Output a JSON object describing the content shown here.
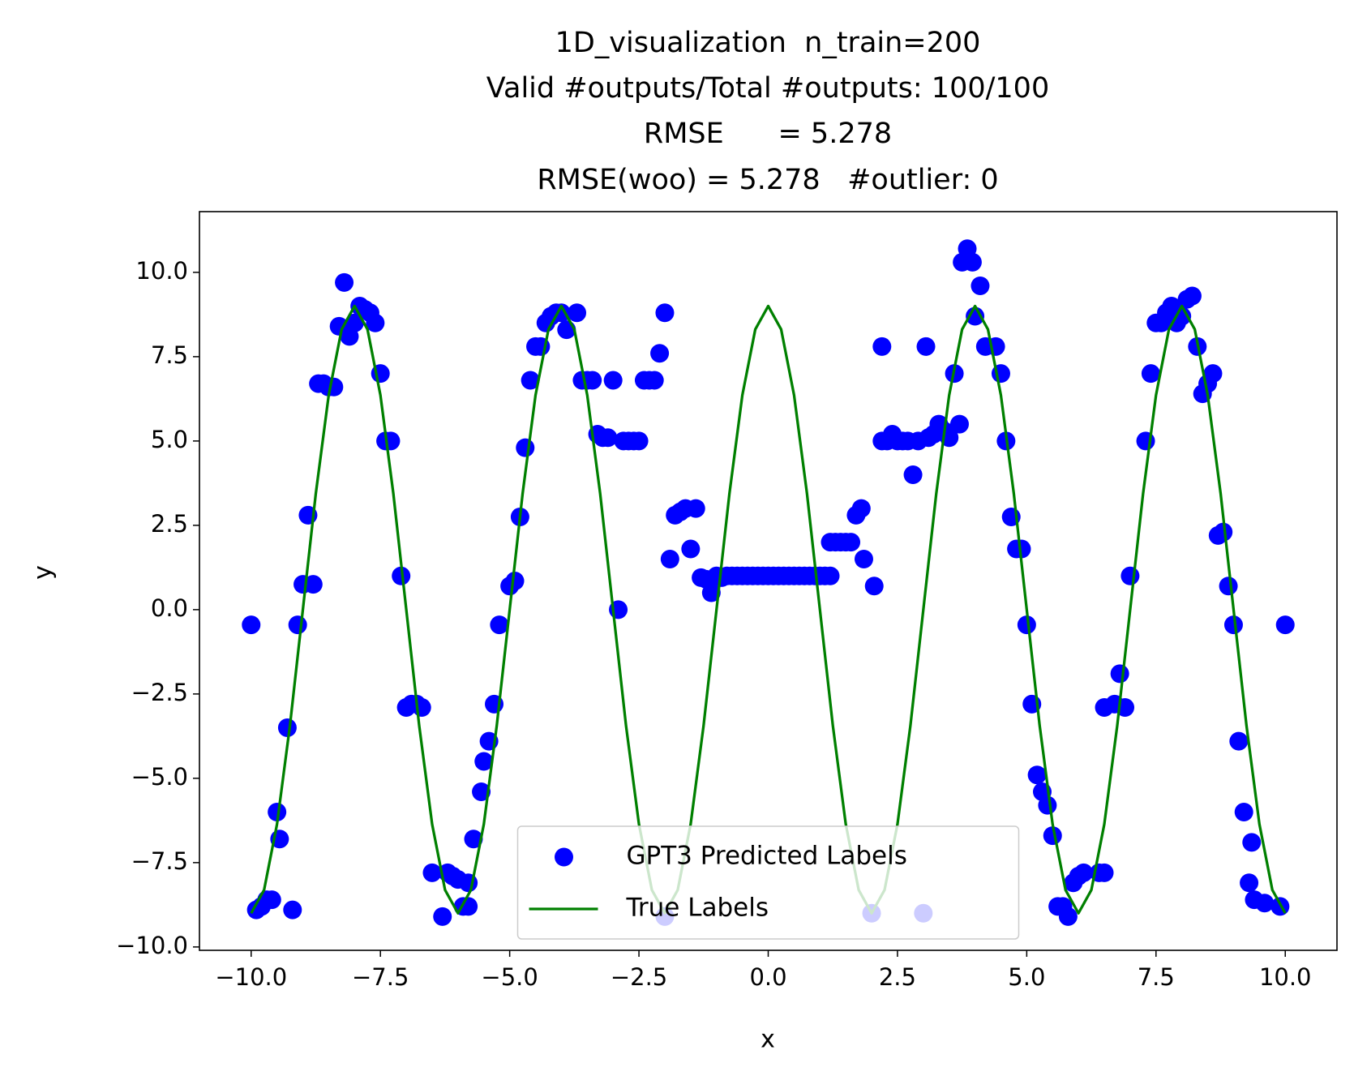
{
  "chart_data": {
    "type": "scatter",
    "title": [
      "1D_visualization  n_train=200",
      "Valid #outputs/Total #outputs: 100/100",
      "RMSE      = 5.278",
      "RMSE(woo) = 5.278   #outlier: 0"
    ],
    "x_label": "x",
    "y_label": "y",
    "xlim": [
      -11,
      11
    ],
    "ylim": [
      -10.1,
      11.8
    ],
    "xticks": [
      {
        "value": -10,
        "label": "−10.0"
      },
      {
        "value": -7.5,
        "label": "−7.5"
      },
      {
        "value": -5,
        "label": "−5.0"
      },
      {
        "value": -2.5,
        "label": "−2.5"
      },
      {
        "value": 0,
        "label": "0.0"
      },
      {
        "value": 2.5,
        "label": "2.5"
      },
      {
        "value": 5,
        "label": "5.0"
      },
      {
        "value": 7.5,
        "label": "7.5"
      },
      {
        "value": 10,
        "label": "10.0"
      }
    ],
    "yticks": [
      {
        "value": -10,
        "label": "−10.0"
      },
      {
        "value": -7.5,
        "label": "−7.5"
      },
      {
        "value": -5,
        "label": "−5.0"
      },
      {
        "value": -2.5,
        "label": "−2.5"
      },
      {
        "value": 0,
        "label": "0.0"
      },
      {
        "value": 2.5,
        "label": "2.5"
      },
      {
        "value": 5,
        "label": "5.0"
      },
      {
        "value": 7.5,
        "label": "7.5"
      },
      {
        "value": 10,
        "label": "10.0"
      }
    ],
    "grid": false,
    "legend": "lower center",
    "series": [
      {
        "name": "GPT3 Predicted Labels",
        "type": "scatter",
        "color": "#0000ff",
        "x": [
          -10,
          -9.9,
          -9.8,
          -9.7,
          -9.6,
          -9.5,
          -9.45,
          -9.3,
          -9.2,
          -9.1,
          -9.0,
          -8.9,
          -8.8,
          -8.7,
          -8.6,
          -8.5,
          -8.4,
          -8.3,
          -8.2,
          -8.1,
          -8.0,
          -7.9,
          -7.8,
          -7.7,
          -7.6,
          -7.5,
          -7.4,
          -7.3,
          -7.1,
          -7.0,
          -6.9,
          -6.8,
          -6.7,
          -6.5,
          -6.3,
          -6.2,
          -6.1,
          -6.0,
          -5.9,
          -5.8,
          -5.8,
          -5.7,
          -5.55,
          -5.5,
          -5.4,
          -5.3,
          -5.2,
          -5.0,
          -4.9,
          -4.8,
          -4.7,
          -4.6,
          -4.5,
          -4.4,
          -4.3,
          -4.2,
          -4.1,
          -4.0,
          -3.9,
          -3.7,
          -3.6,
          -3.5,
          -3.4,
          -3.3,
          -3.2,
          -3.1,
          -3.0,
          -2.9,
          -2.8,
          -2.7,
          -2.6,
          -2.5,
          -2.4,
          -2.3,
          -2.2,
          -2.1,
          -2.0,
          -2.0,
          -1.9,
          -1.8,
          -1.7,
          -1.6,
          -1.5,
          -1.4,
          -1.3,
          -1.2,
          -1.1,
          -1.0,
          -0.9,
          -0.8,
          -0.7,
          -0.6,
          -0.5,
          -0.4,
          -0.3,
          -0.2,
          -0.1,
          0,
          0.1,
          0.2,
          0.3,
          0.4,
          0.5,
          0.6,
          0.7,
          0.8,
          0.9,
          1.0,
          1.1,
          1.2,
          1.2,
          1.3,
          1.4,
          1.5,
          1.6,
          1.7,
          1.8,
          1.85,
          2.0,
          2.05,
          2.2,
          2.2,
          2.3,
          2.4,
          2.5,
          2.6,
          2.7,
          2.8,
          2.9,
          3.0,
          3.05,
          3.1,
          3.2,
          3.3,
          3.4,
          3.5,
          3.6,
          3.7,
          3.75,
          3.85,
          3.95,
          4.0,
          4.1,
          4.2,
          4.4,
          4.5,
          4.6,
          4.7,
          4.8,
          4.9,
          5.0,
          5.1,
          5.2,
          5.3,
          5.4,
          5.5,
          5.6,
          5.7,
          5.8,
          5.9,
          6.0,
          6.1,
          6.4,
          6.5,
          6.5,
          6.7,
          6.8,
          6.9,
          7.0,
          7.3,
          7.4,
          7.5,
          7.6,
          7.7,
          7.8,
          7.9,
          8.0,
          8.1,
          8.2,
          8.3,
          8.4,
          8.5,
          8.6,
          8.7,
          8.8,
          8.9,
          9.0,
          9.1,
          9.2,
          9.3,
          9.35,
          9.4,
          9.6,
          9.9,
          10.0
        ],
        "values": [
          -0.45,
          -8.9,
          -8.8,
          -8.6,
          -8.6,
          -6.0,
          -6.8,
          -3.5,
          -8.9,
          -0.45,
          0.75,
          2.8,
          0.75,
          6.7,
          6.7,
          6.6,
          6.6,
          8.4,
          9.7,
          8.1,
          8.5,
          9.0,
          8.9,
          8.8,
          8.5,
          7.0,
          5.0,
          5.0,
          1.0,
          -2.9,
          -2.8,
          -2.8,
          -2.9,
          -7.8,
          -9.1,
          -7.8,
          -7.9,
          -8.0,
          -8.8,
          -8.8,
          -8.1,
          -6.8,
          -5.4,
          -4.5,
          -3.9,
          -2.8,
          -0.45,
          0.7,
          0.85,
          2.75,
          4.8,
          6.8,
          7.8,
          7.8,
          8.5,
          8.7,
          8.8,
          8.8,
          8.3,
          8.8,
          6.8,
          6.8,
          6.8,
          5.2,
          5.1,
          5.1,
          6.8,
          0.0,
          5.0,
          5.0,
          5.0,
          5.0,
          6.8,
          6.8,
          6.8,
          7.6,
          8.8,
          -9.1,
          1.5,
          2.8,
          2.9,
          3.0,
          1.8,
          3.0,
          0.95,
          0.9,
          0.5,
          1.0,
          0.95,
          1.0,
          1.0,
          1.0,
          1.0,
          1.0,
          1.0,
          1.0,
          1.0,
          1.0,
          1.0,
          1.0,
          1.0,
          1.0,
          1.0,
          1.0,
          1.0,
          1.0,
          1.0,
          1.0,
          1.0,
          1.0,
          2.0,
          2.0,
          2.0,
          2.0,
          2.0,
          2.8,
          3.0,
          1.5,
          -9.0,
          0.7,
          7.8,
          5.0,
          5.0,
          5.2,
          5.0,
          5.0,
          5.0,
          4.0,
          5.0,
          -9.0,
          7.8,
          5.1,
          5.2,
          5.5,
          5.3,
          5.1,
          7.0,
          5.5,
          10.3,
          10.7,
          10.3,
          8.7,
          9.6,
          7.8,
          7.8,
          7.0,
          5.0,
          2.75,
          1.8,
          1.8,
          -0.45,
          -2.8,
          -4.9,
          -5.4,
          -5.8,
          -6.7,
          -8.8,
          -8.8,
          -9.1,
          -8.1,
          -7.9,
          -7.8,
          -7.8,
          -7.8,
          -2.9,
          -2.8,
          -1.9,
          -2.9,
          1.0,
          5.0,
          7.0,
          8.5,
          8.5,
          8.8,
          9.0,
          8.5,
          8.7,
          9.2,
          9.3,
          7.8,
          6.4,
          6.7,
          7.0,
          2.2,
          2.3,
          0.7,
          -0.45,
          -3.9,
          -6.0,
          -8.1,
          -6.9,
          -8.6,
          -8.7,
          -8.8,
          -0.45
        ]
      },
      {
        "name": "True Labels",
        "type": "line",
        "color": "#008000",
        "x": [
          -10,
          -9.75,
          -9.5,
          -9.25,
          -9,
          -8.75,
          -8.5,
          -8.25,
          -8,
          -7.75,
          -7.5,
          -7.25,
          -7,
          -6.75,
          -6.5,
          -6.25,
          -6,
          -5.75,
          -5.5,
          -5.25,
          -5,
          -4.75,
          -4.5,
          -4.25,
          -4,
          -3.75,
          -3.5,
          -3.25,
          -3,
          -2.75,
          -2.5,
          -2.25,
          -2,
          -1.75,
          -1.5,
          -1.25,
          -1,
          -0.75,
          -0.5,
          -0.25,
          0,
          0.25,
          0.5,
          0.75,
          1,
          1.25,
          1.5,
          1.75,
          2,
          2.25,
          2.5,
          2.75,
          3,
          3.25,
          3.5,
          3.75,
          4,
          4.25,
          4.5,
          4.75,
          5,
          5.25,
          5.5,
          5.75,
          6,
          6.25,
          6.5,
          6.75,
          7,
          7.25,
          7.5,
          7.75,
          8,
          8.25,
          8.5,
          8.75,
          9,
          9.25,
          9.5,
          9.75,
          10
        ],
        "values": [
          -9,
          -8.31,
          -6.36,
          -3.44,
          0,
          3.44,
          6.36,
          8.31,
          9,
          8.31,
          6.36,
          3.44,
          0,
          -3.44,
          -6.36,
          -8.31,
          -9,
          -8.31,
          -6.36,
          -3.44,
          0,
          3.44,
          6.36,
          8.31,
          9,
          8.31,
          6.36,
          3.44,
          0,
          -3.44,
          -6.36,
          -8.31,
          -9,
          -8.31,
          -6.36,
          -3.44,
          0,
          3.44,
          6.36,
          8.31,
          9,
          8.31,
          6.36,
          3.44,
          0,
          -3.44,
          -6.36,
          -8.31,
          -9,
          -8.31,
          -6.36,
          -3.44,
          0,
          3.44,
          6.36,
          8.31,
          9,
          8.31,
          6.36,
          3.44,
          0,
          -3.44,
          -6.36,
          -8.31,
          -9,
          -8.31,
          -6.36,
          -3.44,
          0,
          3.44,
          6.36,
          8.31,
          9,
          8.31,
          6.36,
          3.44,
          0,
          -3.44,
          -6.36,
          -8.31,
          -9
        ]
      }
    ]
  }
}
